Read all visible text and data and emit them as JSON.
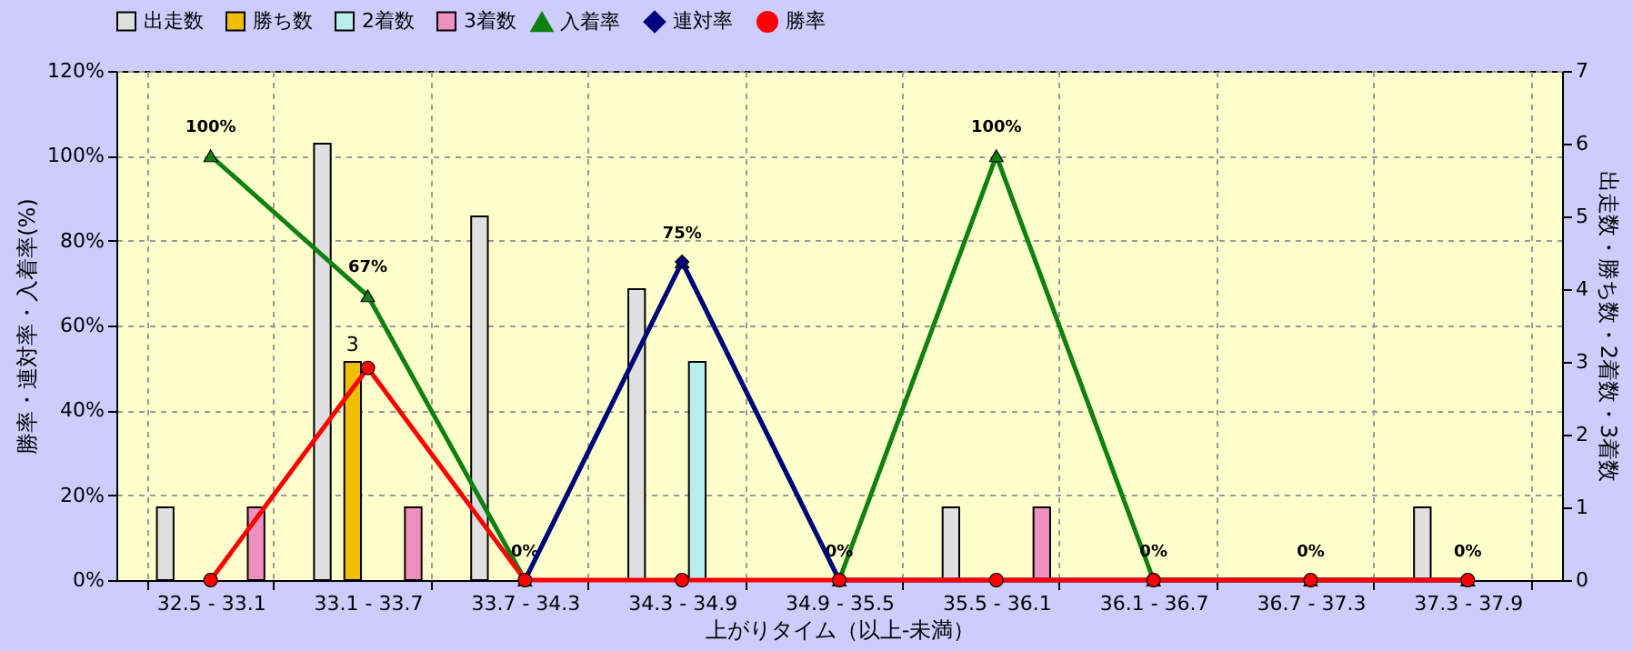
{
  "chart_data": {
    "type": "bar",
    "xlabel": "上がりタイム（以上-未満）",
    "ylabel": "勝率・連対率・入着率(%)",
    "y2label": "出走数・勝ち数・2着数・3着数",
    "categories": [
      "32.5 - 33.1",
      "33.1 - 33.7",
      "33.7 - 34.3",
      "34.3 - 34.9",
      "34.9 - 35.5",
      "35.5 - 36.1",
      "36.1 - 36.7",
      "36.7 - 37.3",
      "37.3 - 37.9"
    ],
    "ylim": [
      0,
      120
    ],
    "yticks": [
      {
        "value": 0,
        "label": "0%"
      },
      {
        "value": 20,
        "label": "20%"
      },
      {
        "value": 40,
        "label": "40%"
      },
      {
        "value": 60,
        "label": "60%"
      },
      {
        "value": 80,
        "label": "80%"
      },
      {
        "value": 100,
        "label": "100%"
      },
      {
        "value": 120,
        "label": "120%"
      }
    ],
    "y2lim": [
      0,
      7
    ],
    "y2ticks": [
      0,
      1,
      2,
      3,
      4,
      5,
      6,
      7
    ],
    "grid": true,
    "legend": "top",
    "series": [
      {
        "name": "出走数",
        "axis": "y2",
        "color": "#e0e0e0",
        "values": [
          1,
          6,
          5,
          4,
          0,
          1,
          0,
          0,
          1
        ]
      },
      {
        "name": "勝ち数",
        "axis": "y2",
        "color": "#f0c000",
        "values": [
          0,
          3,
          0,
          0,
          0,
          0,
          0,
          0,
          0
        ],
        "value_labels": [
          null,
          "3",
          null,
          null,
          null,
          null,
          null,
          null,
          null
        ]
      },
      {
        "name": "2着数",
        "axis": "y2",
        "color": "#b8eeee",
        "values": [
          0,
          0,
          0,
          3,
          0,
          0,
          0,
          0,
          0
        ]
      },
      {
        "name": "3着数",
        "axis": "y2",
        "color": "#f090c0",
        "values": [
          1,
          1,
          0,
          0,
          0,
          1,
          0,
          0,
          0
        ]
      },
      {
        "name": "入着率",
        "type": "line",
        "color": "#108010",
        "marker": "triangle",
        "values": [
          100,
          67,
          0,
          75,
          0,
          100,
          0,
          0,
          0
        ],
        "value_labels": [
          "100%",
          "67%",
          "0%",
          "75%",
          "0%",
          "100%",
          "0%",
          "0%",
          "0%"
        ]
      },
      {
        "name": "連対率",
        "type": "line",
        "color": "#000080",
        "marker": "diamond",
        "values": [
          null,
          null,
          0,
          75,
          0,
          0,
          0,
          0,
          0
        ]
      },
      {
        "name": "勝率",
        "type": "line",
        "color": "#ff0000",
        "marker": "circle",
        "values": [
          0,
          50,
          0,
          0,
          0,
          0,
          0,
          0,
          0
        ]
      }
    ]
  }
}
